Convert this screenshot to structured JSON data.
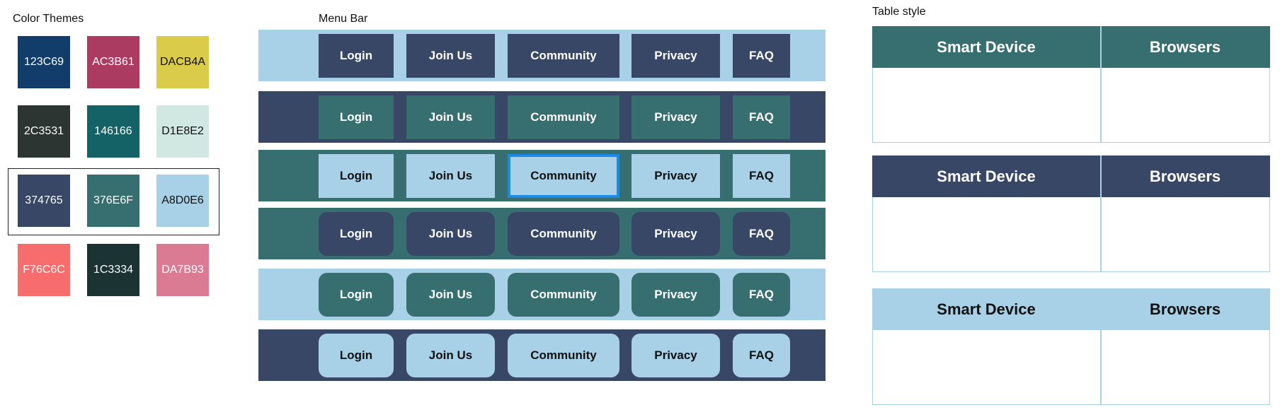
{
  "color_themes": {
    "title": "Color Themes",
    "swatches": [
      "123C69",
      "AC3B61",
      "DACB4A",
      "2C3531",
      "146166",
      "D1E8E2",
      "374765",
      "376E6F",
      "A8D0E6",
      "F76C6C",
      "1C3334",
      "DA7B93"
    ],
    "colors": [
      "#123C69",
      "#AC3B61",
      "#DACB4A",
      "#2C3531",
      "#146166",
      "#D1E8E2",
      "#374765",
      "#376E6F",
      "#A8D0E6",
      "#F76C6C",
      "#1C3334",
      "#DA7B93"
    ]
  },
  "menu_bar": {
    "title": "Menu Bar",
    "items": [
      "Login",
      "Join Us",
      "Community",
      "Privacy",
      "FAQ"
    ],
    "selected_item": "Community",
    "selected_outline_color": "#1A8AE6"
  },
  "table_style": {
    "title": "Table style",
    "headers": [
      "Smart Device",
      "Browsers"
    ],
    "border_color": "#A8D0E6"
  }
}
